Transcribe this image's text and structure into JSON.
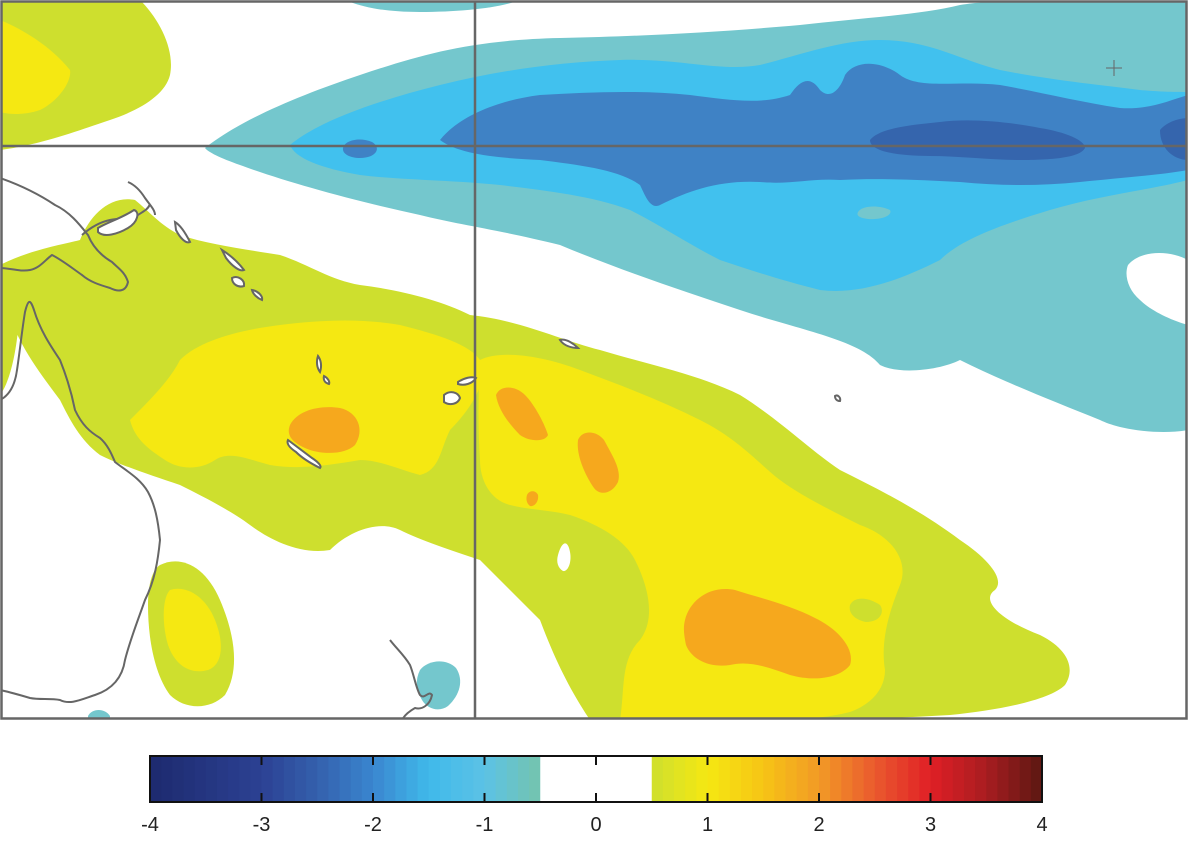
{
  "colorbar": {
    "min": -4,
    "max": 4,
    "ticks": [
      "-4",
      "-3",
      "-2",
      "-1",
      "0",
      "1",
      "2",
      "3",
      "4"
    ],
    "neutral_band": [
      -0.5,
      0.5
    ],
    "stops": [
      {
        "v": -4.0,
        "c": "#1d2a6e"
      },
      {
        "v": -3.0,
        "c": "#2c4193"
      },
      {
        "v": -2.5,
        "c": "#3460ad"
      },
      {
        "v": -2.0,
        "c": "#3a86cf"
      },
      {
        "v": -1.5,
        "c": "#3fb9ea"
      },
      {
        "v": -1.0,
        "c": "#5cc2e6"
      },
      {
        "v": -0.5,
        "c": "#74c4ad"
      },
      {
        "v": 0.5,
        "c": "#cedf2e"
      },
      {
        "v": 1.0,
        "c": "#f5e812"
      },
      {
        "v": 1.5,
        "c": "#f6c415"
      },
      {
        "v": 2.0,
        "c": "#f29a26"
      },
      {
        "v": 2.5,
        "c": "#ea5a2e"
      },
      {
        "v": 3.0,
        "c": "#e01f26"
      },
      {
        "v": 3.5,
        "c": "#a81d20"
      },
      {
        "v": 4.0,
        "c": "#5b1712"
      }
    ]
  },
  "map": {
    "contour_colors": {
      "neg_0_5": "#74c7cd",
      "neg_1": "#41c1ee",
      "neg_1_5": "#3f82c5",
      "neg_2": "#3565ad",
      "pos_0_5": "#cedf2e",
      "pos_1": "#f5e812",
      "pos_1_5": "#f6a81d"
    }
  }
}
